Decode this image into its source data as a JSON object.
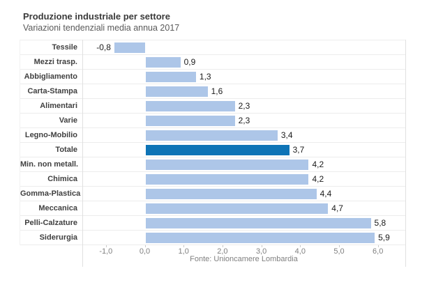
{
  "header": {
    "title": "Produzione industriale per settore",
    "subtitle": "Variazioni tendenziali media annua 2017"
  },
  "footer": {
    "source": "Fonte: Unioncamere Lombardia"
  },
  "colors": {
    "bar": "#adc6e8",
    "bar_highlight": "#0e74b6",
    "grid": "#ececec",
    "axis_text": "#7f7f7f"
  },
  "chart_data": {
    "type": "bar",
    "orientation": "horizontal",
    "title": "Produzione industriale per settore",
    "subtitle": "Variazioni tendenziali media annua 2017",
    "categories": [
      "Tessile",
      "Mezzi trasp.",
      "Abbigliamento",
      "Carta-Stampa",
      "Alimentari",
      "Varie",
      "Legno-Mobilio",
      "Totale",
      "Min. non metall.",
      "Chimica",
      "Gomma-Plastica",
      "Meccanica",
      "Pelli-Calzature",
      "Siderurgia"
    ],
    "values": [
      -0.8,
      0.9,
      1.3,
      1.6,
      2.3,
      2.3,
      3.4,
      3.7,
      4.2,
      4.2,
      4.4,
      4.7,
      5.8,
      5.9
    ],
    "value_labels": [
      "-0,8",
      "0,9",
      "1,3",
      "1,6",
      "2,3",
      "2,3",
      "3,4",
      "3,7",
      "4,2",
      "4,2",
      "4,4",
      "4,7",
      "5,8",
      "5,9"
    ],
    "highlighted_category": "Totale",
    "x_ticks": [
      -1,
      0,
      1,
      2,
      3,
      4,
      5,
      6
    ],
    "x_tick_labels": [
      "-1,0",
      "0,0",
      "1,0",
      "2,0",
      "3,0",
      "4,0",
      "5,0",
      "6,0"
    ],
    "xlim": [
      -1.6,
      6.7
    ],
    "grid": "category-row-separators",
    "legend": "none",
    "source": "Fonte: Unioncamere Lombardia"
  }
}
